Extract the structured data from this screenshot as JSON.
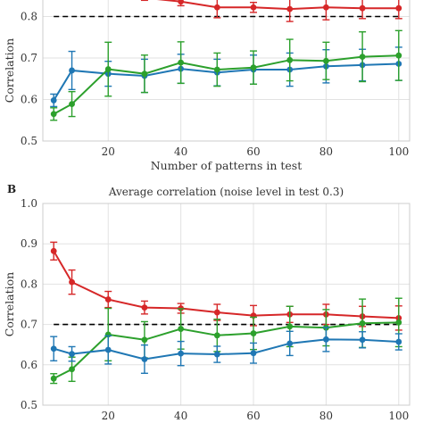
{
  "chart_data": [
    {
      "type": "line",
      "panel_label": "",
      "title": "",
      "xlabel": "Number of patterns in test",
      "ylabel": "Correlation",
      "xlim": [
        2,
        103
      ],
      "ylim": [
        0.5,
        0.9
      ],
      "xticks": [
        20,
        40,
        60,
        80,
        100
      ],
      "yticks": [
        0.5,
        0.6,
        0.7,
        0.8
      ],
      "grid": true,
      "reference_line": {
        "y": 0.8,
        "x_range": [
          5,
          100
        ],
        "style": "dashed",
        "color": "#000000"
      },
      "series": [
        {
          "color": "#d62728",
          "x": [
            30,
            40,
            50,
            60,
            70,
            80,
            90,
            100
          ],
          "y": [
            0.845,
            0.836,
            0.822,
            0.822,
            0.818,
            0.822,
            0.82,
            0.82
          ],
          "err": [
            0.006,
            0.01,
            0.025,
            0.012,
            0.03,
            0.03,
            0.025,
            0.025
          ]
        },
        {
          "color": "#1f77b4",
          "x": [
            5,
            10,
            20,
            30,
            40,
            50,
            60,
            70,
            80,
            90,
            100
          ],
          "y": [
            0.598,
            0.67,
            0.662,
            0.657,
            0.674,
            0.665,
            0.672,
            0.672,
            0.68,
            0.683,
            0.686
          ],
          "err": [
            0.015,
            0.046,
            0.03,
            0.04,
            0.035,
            0.032,
            0.035,
            0.04,
            0.04,
            0.038,
            0.04
          ]
        },
        {
          "color": "#2ca02c",
          "x": [
            5,
            10,
            20,
            30,
            40,
            50,
            60,
            70,
            80,
            90,
            100
          ],
          "y": [
            0.565,
            0.589,
            0.673,
            0.662,
            0.689,
            0.672,
            0.677,
            0.695,
            0.693,
            0.703,
            0.706
          ],
          "err": [
            0.015,
            0.03,
            0.065,
            0.045,
            0.05,
            0.04,
            0.04,
            0.05,
            0.045,
            0.06,
            0.06
          ]
        }
      ]
    },
    {
      "type": "line",
      "panel_label": "B",
      "title": "Average correlation (noise level in test 0.3)",
      "xlabel": "",
      "ylabel": "Correlation",
      "xlim": [
        2,
        103
      ],
      "ylim": [
        0.5,
        1.0
      ],
      "xticks": [
        20,
        40,
        60,
        80,
        100
      ],
      "yticks": [
        0.5,
        0.6,
        0.7,
        0.8,
        0.9,
        1.0
      ],
      "grid": true,
      "reference_line": {
        "y": 0.7,
        "x_range": [
          5,
          100
        ],
        "style": "dashed",
        "color": "#000000"
      },
      "series": [
        {
          "color": "#d62728",
          "x": [
            5,
            10,
            20,
            30,
            40,
            50,
            60,
            70,
            80,
            90,
            100
          ],
          "y": [
            0.882,
            0.805,
            0.762,
            0.742,
            0.74,
            0.73,
            0.722,
            0.725,
            0.725,
            0.72,
            0.716
          ],
          "err": [
            0.022,
            0.03,
            0.02,
            0.016,
            0.012,
            0.02,
            0.025,
            0.02,
            0.025,
            0.025,
            0.03
          ]
        },
        {
          "color": "#2ca02c",
          "x": [
            5,
            10,
            20,
            30,
            40,
            50,
            60,
            70,
            80,
            90,
            100
          ],
          "y": [
            0.566,
            0.589,
            0.675,
            0.662,
            0.689,
            0.673,
            0.678,
            0.695,
            0.692,
            0.703,
            0.705
          ],
          "err": [
            0.012,
            0.03,
            0.065,
            0.045,
            0.05,
            0.04,
            0.04,
            0.05,
            0.045,
            0.06,
            0.06
          ]
        },
        {
          "color": "#1f77b4",
          "x": [
            5,
            10,
            20,
            30,
            40,
            50,
            60,
            70,
            80,
            90,
            100
          ],
          "y": [
            0.64,
            0.627,
            0.637,
            0.614,
            0.628,
            0.626,
            0.629,
            0.653,
            0.663,
            0.662,
            0.657
          ],
          "err": [
            0.03,
            0.018,
            0.035,
            0.035,
            0.03,
            0.02,
            0.025,
            0.03,
            0.03,
            0.02,
            0.02
          ]
        }
      ]
    }
  ]
}
